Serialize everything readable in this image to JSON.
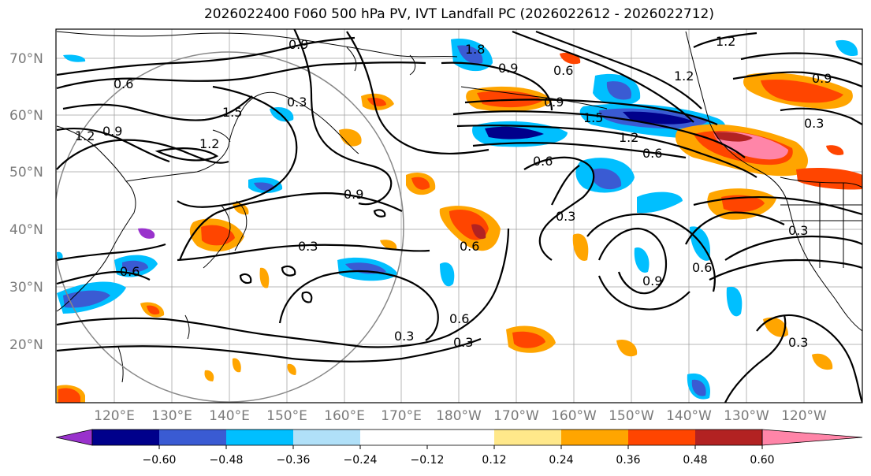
{
  "title": "2026022400 F060 500 hPa PV, IVT Landfall PC (2026022612 - 2026022712)",
  "latitude_labels": [
    "70°N",
    "60°N",
    "50°N",
    "40°N",
    "30°N",
    "20°N"
  ],
  "longitude_labels": [
    "120°E",
    "130°E",
    "140°E",
    "150°E",
    "160°E",
    "170°E",
    "180°W",
    "170°W",
    "160°W",
    "150°W",
    "140°W",
    "130°W",
    "120°W"
  ],
  "contour_labels": [
    "0.6",
    "0.9",
    "1.2",
    "0.3",
    "0.9",
    "1.2",
    "0.6",
    "0.3",
    "0.6",
    "0.3",
    "0.6",
    "0.3",
    "0.6",
    "0.9",
    "1.5",
    "1.2",
    "0.6",
    "0.3",
    "0.9",
    "0.6",
    "0.3",
    "0.3",
    "1.2",
    "1.2",
    "0.9",
    "0.3",
    "1.8",
    "0.9",
    "0.6",
    "0.9",
    "1.5"
  ],
  "colorbar": {
    "ticks": [
      "−0.60",
      "−0.48",
      "−0.36",
      "−0.24",
      "−0.12",
      "0.12",
      "0.24",
      "0.36",
      "0.48",
      "0.60"
    ],
    "colors": {
      "below_min": "#9932CC",
      "neg_060_048": "#00008B",
      "neg_048_036": "#3A5BD3",
      "neg_036_024": "#00BFFF",
      "neg_024_012": "#B0E0F8",
      "neutral": "#FFFFFF",
      "pos_012_024": "#FFE88A",
      "pos_024_036": "#FFA500",
      "pos_036_048": "#FF4500",
      "pos_048_060": "#B22222",
      "above_max": "#FF85A8"
    }
  },
  "icons": {
    "colorbar_min_extension": "triangle-left",
    "colorbar_max_extension": "triangle-right"
  }
}
